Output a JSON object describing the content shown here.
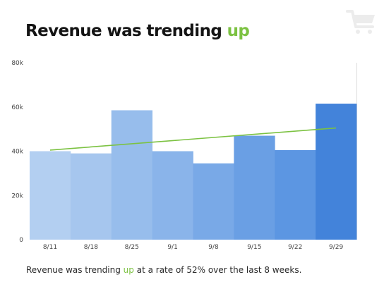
{
  "headline": {
    "prefix": "Revenue was trending ",
    "accent": "up"
  },
  "caption": {
    "prefix": "Revenue was trending ",
    "accent": "up",
    "suffix": " at a rate of 52% over the last 8 weeks."
  },
  "icons": {
    "corner": "shopping-cart-icon"
  },
  "colors": {
    "accent": "#7cc242",
    "trend": "#7cc242",
    "bars": [
      "#b3cff1",
      "#a6c6ee",
      "#97bdec",
      "#8ab4ea",
      "#79a9e7",
      "#6a9fe4",
      "#5c96e2",
      "#4383da"
    ],
    "icon": "#ececec",
    "axis": "#dddddd"
  },
  "chart_data": {
    "type": "bar",
    "categories": [
      "8/11",
      "8/18",
      "8/25",
      "9/1",
      "9/8",
      "9/15",
      "9/22",
      "9/29"
    ],
    "values": [
      40000,
      39000,
      58500,
      40000,
      34500,
      47000,
      40500,
      61500
    ],
    "ylim": [
      0,
      80000
    ],
    "yticks": [
      0,
      20000,
      40000,
      60000,
      80000
    ],
    "ytick_labels": [
      "0",
      "20k",
      "40k",
      "60k",
      "80k"
    ],
    "trend": {
      "start": 40500,
      "end": 50500
    },
    "grid": false,
    "legend": "none"
  }
}
